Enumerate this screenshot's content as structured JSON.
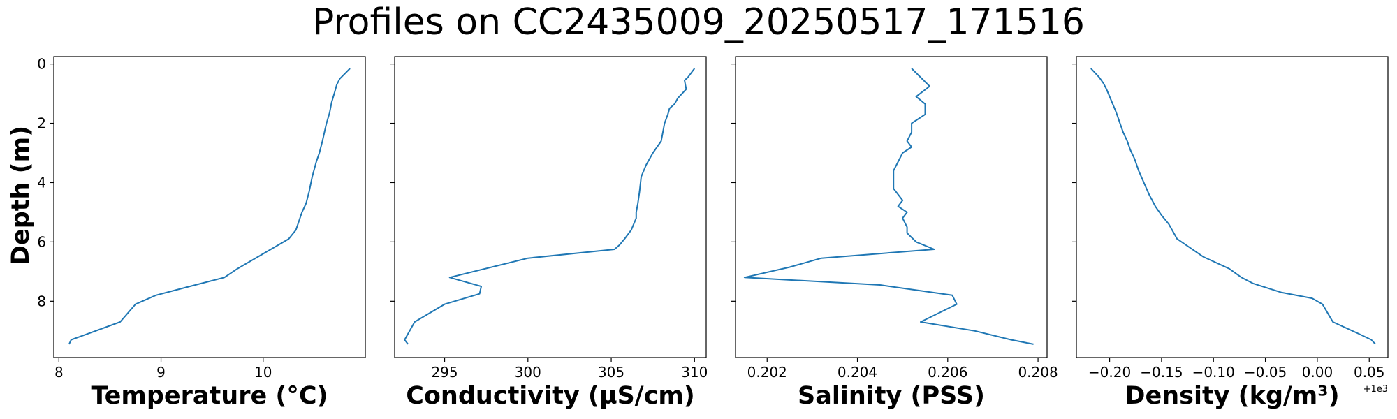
{
  "figure": {
    "title": "Profiles on CC2435009_20250517_171516",
    "ylabel": "Depth (m)",
    "line_color": "#1f77b4"
  },
  "chart_data": [
    {
      "type": "line",
      "xlabel": "Temperature (°C)",
      "ylabel": "Depth (m)",
      "xlim": [
        7.95,
        11.0
      ],
      "ylim": [
        9.9,
        -0.25
      ],
      "y_inverted": true,
      "xticks": [
        8,
        9,
        10
      ],
      "xtick_labels": [
        "8",
        "9",
        "10"
      ],
      "yticks": [
        0,
        2,
        4,
        6,
        8
      ],
      "ytick_labels": [
        "0",
        "2",
        "4",
        "6",
        "8"
      ],
      "show_ytick_labels": true,
      "x_offset_label": "",
      "series": [
        {
          "x": [
            10.85,
            10.75,
            10.72,
            10.7,
            10.67,
            10.65,
            10.62,
            10.58,
            10.55,
            10.52,
            10.48,
            10.45,
            10.42,
            10.38,
            10.32,
            10.25,
            10.05,
            9.95,
            9.75,
            9.62,
            9.28,
            8.95,
            8.75,
            8.6,
            8.2,
            8.12,
            8.1
          ],
          "y": [
            0.15,
            0.5,
            0.7,
            0.95,
            1.3,
            1.65,
            2.0,
            2.6,
            3.0,
            3.3,
            3.8,
            4.3,
            4.7,
            5.0,
            5.6,
            5.9,
            6.3,
            6.5,
            6.9,
            7.2,
            7.5,
            7.8,
            8.1,
            8.7,
            9.2,
            9.3,
            9.45
          ]
        }
      ]
    },
    {
      "type": "line",
      "xlabel": "Conductivity (µS/cm)",
      "ylabel": "",
      "xlim": [
        292.0,
        310.7
      ],
      "ylim": [
        9.9,
        -0.25
      ],
      "y_inverted": true,
      "xticks": [
        295,
        300,
        305,
        310
      ],
      "xtick_labels": [
        "295",
        "300",
        "305",
        "310"
      ],
      "yticks": [
        0,
        2,
        4,
        6,
        8
      ],
      "ytick_labels": [
        "",
        "",
        "",
        "",
        ""
      ],
      "show_ytick_labels": false,
      "x_offset_label": "",
      "series": [
        {
          "x": [
            310.0,
            309.6,
            309.4,
            309.5,
            309.0,
            308.8,
            308.5,
            308.4,
            308.2,
            308.0,
            307.5,
            307.1,
            306.8,
            306.7,
            306.6,
            306.5,
            306.5,
            306.2,
            305.8,
            305.5,
            305.2,
            300.0,
            295.3,
            297.2,
            297.1,
            295.0,
            293.2,
            292.6,
            292.8
          ],
          "y": [
            0.15,
            0.45,
            0.55,
            0.85,
            1.15,
            1.35,
            1.5,
            1.7,
            2.0,
            2.6,
            3.0,
            3.4,
            3.8,
            4.3,
            4.7,
            5.0,
            5.2,
            5.6,
            5.9,
            6.1,
            6.25,
            6.55,
            7.2,
            7.5,
            7.75,
            8.1,
            8.7,
            9.3,
            9.45
          ]
        }
      ]
    },
    {
      "type": "line",
      "xlabel": "Salinity (PSS)",
      "ylabel": "",
      "xlim": [
        0.2013,
        0.2082
      ],
      "ylim": [
        9.9,
        -0.25
      ],
      "y_inverted": true,
      "xticks": [
        0.202,
        0.204,
        0.206,
        0.208
      ],
      "xtick_labels": [
        "0.202",
        "0.204",
        "0.206",
        "0.208"
      ],
      "show_ytick_labels": false,
      "yticks": [
        0,
        2,
        4,
        6,
        8
      ],
      "ytick_labels": [
        "",
        "",
        "",
        "",
        ""
      ],
      "x_offset_label": "",
      "series": [
        {
          "x": [
            0.2052,
            0.2056,
            0.2053,
            0.2055,
            0.2055,
            0.2052,
            0.2052,
            0.2051,
            0.2052,
            0.205,
            0.2049,
            0.2048,
            0.2048,
            0.2048,
            0.205,
            0.2049,
            0.2051,
            0.205,
            0.2051,
            0.2051,
            0.2053,
            0.2057,
            0.2032,
            0.2025,
            0.2015,
            0.2045,
            0.2061,
            0.2062,
            0.2054,
            0.2066,
            0.2074,
            0.2079
          ],
          "y": [
            0.15,
            0.75,
            1.1,
            1.35,
            1.7,
            2.0,
            2.3,
            2.6,
            2.8,
            3.0,
            3.3,
            3.6,
            3.8,
            4.2,
            4.6,
            4.8,
            5.0,
            5.2,
            5.5,
            5.7,
            6.0,
            6.25,
            6.55,
            6.85,
            7.2,
            7.45,
            7.8,
            8.1,
            8.7,
            9.0,
            9.3,
            9.45
          ]
        }
      ]
    },
    {
      "type": "line",
      "xlabel": "Density (kg/m³)",
      "ylabel": "",
      "xlim": [
        -0.232,
        0.068
      ],
      "ylim": [
        9.9,
        -0.25
      ],
      "y_inverted": true,
      "xticks": [
        -0.2,
        -0.15,
        -0.1,
        -0.05,
        0.0,
        0.05
      ],
      "xtick_labels": [
        "−0.20",
        "−0.15",
        "−0.10",
        "−0.05",
        "0.00",
        "0.05"
      ],
      "show_ytick_labels": false,
      "yticks": [
        0,
        2,
        4,
        6,
        8
      ],
      "ytick_labels": [
        "",
        "",
        "",
        "",
        ""
      ],
      "x_offset_label": "+1e3",
      "series": [
        {
          "x": [
            -0.218,
            -0.21,
            -0.206,
            -0.203,
            -0.2,
            -0.197,
            -0.194,
            -0.192,
            -0.19,
            -0.187,
            -0.183,
            -0.18,
            -0.176,
            -0.172,
            -0.167,
            -0.162,
            -0.156,
            -0.15,
            -0.143,
            -0.135,
            -0.11,
            -0.085,
            -0.073,
            -0.062,
            -0.035,
            -0.005,
            0.005,
            0.015,
            0.04,
            0.052,
            0.056
          ],
          "y": [
            0.15,
            0.45,
            0.65,
            0.85,
            1.1,
            1.35,
            1.6,
            1.8,
            2.0,
            2.3,
            2.6,
            2.9,
            3.2,
            3.6,
            4.0,
            4.4,
            4.8,
            5.1,
            5.4,
            5.9,
            6.5,
            6.9,
            7.2,
            7.4,
            7.7,
            7.9,
            8.1,
            8.7,
            9.1,
            9.3,
            9.45
          ]
        }
      ]
    }
  ]
}
